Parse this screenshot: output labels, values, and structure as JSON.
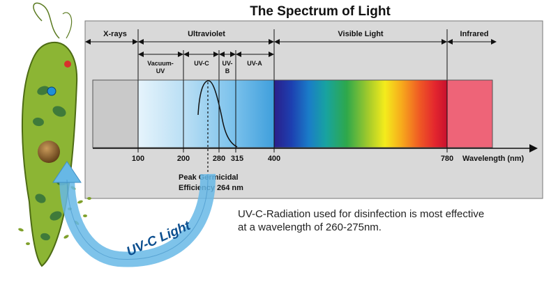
{
  "title": "The Spectrum of Light",
  "bands": {
    "xrays": "X-rays",
    "ultraviolet": "Ultraviolet",
    "visible": "Visible Light",
    "infrared": "Infrared"
  },
  "uv_subbands": {
    "vacuum_line1": "Vacuum-",
    "vacuum_line2": "UV",
    "uvc": "UV-C",
    "uvb_line1": "UV-",
    "uvb_line2": "B",
    "uva": "UV-A"
  },
  "axis": {
    "ticks": [
      "100",
      "200",
      "280",
      "315",
      "400",
      "780"
    ],
    "label": "Wavelength (nm)"
  },
  "peak_note": {
    "line1": "Peak Germicidal",
    "line2": "Efficiency 264 nm"
  },
  "caption": {
    "line1": "UV-C-Radiation used for disinfection is most effective",
    "line2": "at a wavelength of 260-275nm."
  },
  "arrow_label": "UV-C Light",
  "colors": {
    "panel": "#d9d9d9",
    "xray_region": "#c9c9c9",
    "infrared_region": "#ee6478",
    "arrow": "#67b8e6",
    "organism": "#8cb534"
  }
}
